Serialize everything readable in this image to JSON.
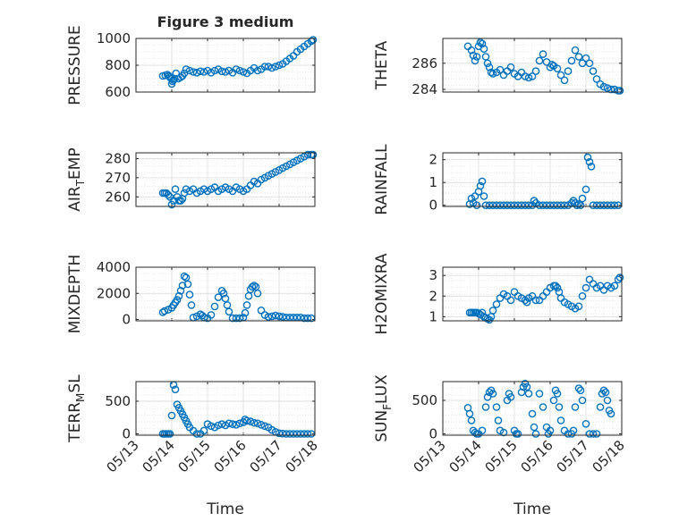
{
  "figure": {
    "title": "Figure 3 medium"
  },
  "x_axis": {
    "ticks": [
      "05/13",
      "05/14",
      "05/15",
      "05/16",
      "05/17",
      "05/18"
    ],
    "label": "Time"
  },
  "chart_data": [
    {
      "type": "scatter",
      "ylabel": "PRESSURE",
      "ylim": [
        600,
        1000
      ],
      "yticks": [
        "600",
        "800",
        "1000"
      ],
      "xlim": [
        0,
        5
      ],
      "x": [
        0.75,
        0.82,
        0.88,
        0.92,
        0.95,
        0.98,
        1.0,
        1.02,
        1.05,
        1.08,
        1.12,
        1.18,
        1.25,
        1.3,
        1.35,
        1.4,
        1.5,
        1.6,
        1.7,
        1.8,
        1.9,
        2.0,
        2.1,
        2.2,
        2.3,
        2.4,
        2.5,
        2.6,
        2.7,
        2.8,
        2.9,
        3.0,
        3.1,
        3.2,
        3.3,
        3.4,
        3.5,
        3.6,
        3.7,
        3.8,
        3.9,
        4.0,
        4.1,
        4.2,
        4.3,
        4.4,
        4.5,
        4.6,
        4.7,
        4.8,
        4.9,
        4.95
      ],
      "y": [
        720,
        725,
        730,
        720,
        710,
        700,
        660,
        680,
        690,
        700,
        740,
        700,
        710,
        720,
        740,
        770,
        760,
        750,
        745,
        755,
        750,
        760,
        745,
        760,
        770,
        755,
        750,
        760,
        745,
        770,
        760,
        750,
        740,
        760,
        780,
        760,
        770,
        790,
        790,
        780,
        790,
        800,
        810,
        830,
        850,
        870,
        900,
        920,
        940,
        960,
        980,
        990
      ]
    },
    {
      "type": "scatter",
      "ylabel": "THETA",
      "ylim": [
        283.8,
        287.9
      ],
      "yticks": [
        "284",
        "286"
      ],
      "xlim": [
        0,
        5
      ],
      "x": [
        0.7,
        0.8,
        0.85,
        0.9,
        0.95,
        1.0,
        1.05,
        1.1,
        1.15,
        1.2,
        1.25,
        1.3,
        1.35,
        1.4,
        1.5,
        1.6,
        1.7,
        1.8,
        1.9,
        2.0,
        2.1,
        2.2,
        2.3,
        2.4,
        2.5,
        2.6,
        2.7,
        2.8,
        2.9,
        3.0,
        3.05,
        3.1,
        3.2,
        3.3,
        3.4,
        3.5,
        3.6,
        3.7,
        3.8,
        3.9,
        4.0,
        4.1,
        4.2,
        4.3,
        4.4,
        4.5,
        4.6,
        4.7,
        4.8,
        4.9,
        4.95
      ],
      "y": [
        287.3,
        287.0,
        286.6,
        286.2,
        286.5,
        287.3,
        287.6,
        287.5,
        287.1,
        286.5,
        286.0,
        285.7,
        285.3,
        285.2,
        285.3,
        285.5,
        285.1,
        285.4,
        285.7,
        285.2,
        285.0,
        285.3,
        285.0,
        284.9,
        285.0,
        285.4,
        286.2,
        286.7,
        286.1,
        285.7,
        285.9,
        285.8,
        285.6,
        285.1,
        284.7,
        285.4,
        286.2,
        287.0,
        286.5,
        286.0,
        286.4,
        286.0,
        285.4,
        284.8,
        284.4,
        284.2,
        284.1,
        284.0,
        284.0,
        283.9,
        283.9
      ]
    },
    {
      "type": "scatter",
      "ylabel": "AIR_TEMP",
      "ylim": [
        255,
        283
      ],
      "yticks": [
        "260",
        "270",
        "280"
      ],
      "xlim": [
        0,
        5
      ],
      "x": [
        0.75,
        0.8,
        0.85,
        0.9,
        0.95,
        1.0,
        1.05,
        1.1,
        1.15,
        1.2,
        1.25,
        1.3,
        1.35,
        1.4,
        1.5,
        1.6,
        1.7,
        1.8,
        1.9,
        2.0,
        2.1,
        2.2,
        2.3,
        2.4,
        2.5,
        2.6,
        2.7,
        2.8,
        2.9,
        3.0,
        3.1,
        3.2,
        3.3,
        3.4,
        3.5,
        3.6,
        3.7,
        3.8,
        3.9,
        4.0,
        4.1,
        4.2,
        4.3,
        4.4,
        4.5,
        4.6,
        4.7,
        4.8,
        4.9,
        4.95
      ],
      "y": [
        262,
        262,
        262,
        261,
        260,
        256,
        258,
        264,
        260,
        258,
        258,
        259,
        262,
        264,
        263,
        264,
        262,
        263,
        264,
        263,
        264,
        265,
        263,
        264,
        265,
        264,
        263,
        265,
        264,
        263,
        264,
        266,
        268,
        267,
        269,
        270,
        271,
        272,
        273,
        274,
        275,
        276,
        277,
        278,
        279,
        280,
        281,
        282,
        282,
        282
      ]
    },
    {
      "type": "scatter",
      "ylabel": "RAINFALL",
      "ylim": [
        -0.05,
        2.3
      ],
      "yticks": [
        "0",
        "1",
        "2"
      ],
      "xlim": [
        0,
        5
      ],
      "x": [
        0.75,
        0.8,
        0.85,
        0.9,
        0.95,
        1.0,
        1.05,
        1.1,
        1.15,
        1.2,
        1.3,
        1.4,
        1.5,
        1.6,
        1.7,
        1.8,
        1.9,
        2.0,
        2.1,
        2.2,
        2.3,
        2.4,
        2.5,
        2.55,
        2.6,
        2.7,
        2.8,
        2.9,
        3.0,
        3.1,
        3.2,
        3.3,
        3.4,
        3.5,
        3.6,
        3.65,
        3.7,
        3.75,
        3.8,
        3.85,
        3.9,
        4.0,
        4.05,
        4.1,
        4.15,
        4.2,
        4.3,
        4.4,
        4.5,
        4.6,
        4.7,
        4.8,
        4.9
      ],
      "y": [
        0.05,
        0.3,
        0.1,
        0.4,
        0.0,
        0.6,
        0.85,
        1.05,
        0.4,
        0.0,
        0.0,
        0.0,
        0.0,
        0.0,
        0.0,
        0.0,
        0.0,
        0.0,
        0.0,
        0.0,
        0.0,
        0.0,
        0.0,
        0.2,
        0.1,
        0.0,
        0.0,
        0.0,
        0.0,
        0.0,
        0.0,
        0.0,
        0.0,
        0.0,
        0.1,
        0.2,
        0.1,
        0.0,
        0.05,
        0.0,
        0.3,
        0.7,
        2.1,
        1.9,
        1.7,
        0.0,
        0.0,
        0.0,
        0.0,
        0.0,
        0.0,
        0.0,
        0.0
      ]
    },
    {
      "type": "scatter",
      "ylabel": "MIXDEPTH",
      "ylim": [
        -100,
        4000
      ],
      "yticks": [
        "0",
        "2000",
        "4000"
      ],
      "xlim": [
        0,
        5
      ],
      "x": [
        0.75,
        0.8,
        0.9,
        1.0,
        1.05,
        1.1,
        1.15,
        1.2,
        1.25,
        1.3,
        1.35,
        1.4,
        1.45,
        1.5,
        1.55,
        1.6,
        1.7,
        1.8,
        1.85,
        1.9,
        2.0,
        2.1,
        2.2,
        2.3,
        2.4,
        2.45,
        2.5,
        2.55,
        2.6,
        2.7,
        2.8,
        2.9,
        3.0,
        3.05,
        3.1,
        3.15,
        3.2,
        3.25,
        3.3,
        3.35,
        3.4,
        3.5,
        3.6,
        3.7,
        3.8,
        3.9,
        4.0,
        4.1,
        4.2,
        4.3,
        4.4,
        4.5,
        4.6,
        4.7,
        4.8,
        4.9
      ],
      "y": [
        550,
        650,
        750,
        900,
        1100,
        1300,
        1500,
        1800,
        2200,
        2600,
        3300,
        3200,
        2700,
        1900,
        1100,
        150,
        250,
        400,
        300,
        150,
        100,
        350,
        1000,
        1700,
        2200,
        2000,
        1600,
        1100,
        600,
        100,
        100,
        100,
        150,
        500,
        1100,
        1800,
        2300,
        2500,
        2600,
        2500,
        2000,
        700,
        350,
        200,
        250,
        300,
        250,
        200,
        150,
        150,
        150,
        150,
        150,
        100,
        100,
        100
      ]
    },
    {
      "type": "scatter",
      "ylabel": "H2OMIXRA",
      "ylim": [
        0.8,
        3.4
      ],
      "yticks": [
        "1",
        "2",
        "3"
      ],
      "xlim": [
        0,
        5
      ],
      "x": [
        0.75,
        0.8,
        0.85,
        0.9,
        0.95,
        1.0,
        1.05,
        1.1,
        1.15,
        1.2,
        1.25,
        1.3,
        1.35,
        1.4,
        1.5,
        1.6,
        1.7,
        1.8,
        1.9,
        2.0,
        2.1,
        2.2,
        2.3,
        2.35,
        2.4,
        2.5,
        2.6,
        2.7,
        2.8,
        2.9,
        3.0,
        3.1,
        3.15,
        3.2,
        3.25,
        3.3,
        3.4,
        3.5,
        3.6,
        3.7,
        3.8,
        3.9,
        4.0,
        4.1,
        4.2,
        4.3,
        4.4,
        4.5,
        4.6,
        4.7,
        4.8,
        4.9,
        4.95
      ],
      "y": [
        1.2,
        1.2,
        1.2,
        1.2,
        1.2,
        1.15,
        1.1,
        1.2,
        1.0,
        0.95,
        0.9,
        0.85,
        1.0,
        1.3,
        1.6,
        1.9,
        2.1,
        2.0,
        1.8,
        2.2,
        2.0,
        1.9,
        1.8,
        1.7,
        1.9,
        2.0,
        1.8,
        1.8,
        2.0,
        2.2,
        2.4,
        2.5,
        2.5,
        2.4,
        2.2,
        1.9,
        1.7,
        1.6,
        1.5,
        1.4,
        1.5,
        2.0,
        2.4,
        2.8,
        2.6,
        2.4,
        2.5,
        2.3,
        2.5,
        2.4,
        2.5,
        2.8,
        2.9
      ]
    },
    {
      "type": "scatter",
      "ylabel": "TERR_MSL",
      "ylim": [
        -20,
        800
      ],
      "yticks": [
        "0",
        "500"
      ],
      "xlim": [
        0,
        5
      ],
      "x": [
        0.75,
        0.8,
        0.85,
        0.9,
        0.95,
        1.0,
        1.05,
        1.1,
        1.15,
        1.2,
        1.25,
        1.3,
        1.35,
        1.4,
        1.45,
        1.5,
        1.6,
        1.7,
        1.8,
        1.9,
        2.0,
        2.1,
        2.2,
        2.3,
        2.4,
        2.5,
        2.6,
        2.7,
        2.8,
        2.9,
        3.0,
        3.05,
        3.1,
        3.2,
        3.3,
        3.4,
        3.5,
        3.6,
        3.7,
        3.8,
        3.9,
        4.0,
        4.1,
        4.2,
        4.3,
        4.4,
        4.5,
        4.6,
        4.7,
        4.8,
        4.9
      ],
      "y": [
        0,
        0,
        0,
        0,
        0,
        280,
        750,
        680,
        450,
        400,
        350,
        300,
        250,
        200,
        150,
        100,
        50,
        0,
        0,
        50,
        150,
        120,
        100,
        130,
        150,
        130,
        160,
        150,
        140,
        160,
        180,
        220,
        200,
        190,
        170,
        160,
        140,
        120,
        100,
        60,
        30,
        10,
        5,
        0,
        0,
        0,
        0,
        0,
        0,
        0,
        0
      ]
    },
    {
      "type": "scatter",
      "ylabel": "SUN_FLUX",
      "ylim": [
        -20,
        780
      ],
      "yticks": [
        "0",
        "500"
      ],
      "xlim": [
        0,
        5
      ],
      "x": [
        0.7,
        0.75,
        0.8,
        0.85,
        0.9,
        0.95,
        1.0,
        1.1,
        1.2,
        1.25,
        1.3,
        1.35,
        1.4,
        1.5,
        1.55,
        1.6,
        1.7,
        1.8,
        1.85,
        1.9,
        2.0,
        2.05,
        2.1,
        2.2,
        2.25,
        2.3,
        2.35,
        2.4,
        2.5,
        2.55,
        2.6,
        2.7,
        2.8,
        2.9,
        2.95,
        3.0,
        3.1,
        3.15,
        3.2,
        3.25,
        3.3,
        3.4,
        3.5,
        3.6,
        3.65,
        3.7,
        3.8,
        3.85,
        3.9,
        4.0,
        4.1,
        4.2,
        4.3,
        4.4,
        4.45,
        4.5,
        4.55,
        4.6,
        4.65,
        4.7
      ],
      "y": [
        390,
        300,
        200,
        50,
        20,
        0,
        0,
        50,
        400,
        550,
        620,
        650,
        600,
        400,
        200,
        50,
        20,
        500,
        600,
        550,
        50,
        0,
        0,
        620,
        700,
        750,
        700,
        600,
        300,
        100,
        0,
        600,
        400,
        100,
        0,
        50,
        500,
        650,
        600,
        400,
        200,
        50,
        0,
        0,
        50,
        400,
        680,
        650,
        500,
        150,
        0,
        0,
        0,
        400,
        600,
        650,
        620,
        500,
        350,
        300
      ]
    }
  ]
}
